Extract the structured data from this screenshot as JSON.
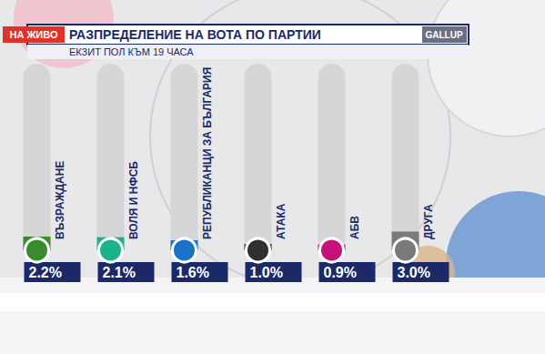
{
  "chart_data": {
    "type": "bar",
    "title": "РАЗПРЕДЕЛЕНИЕ НА ВОТА ПО ПАРТИИ",
    "subtitle": "ЕКЗИТ ПОЛ КЪМ 19 ЧАСА",
    "annotations": [
      "НА ЖИВО",
      "GALLUP"
    ],
    "categories": [
      "ВЪЗРАЖДАНЕ",
      "ВОЛЯ И НФСБ",
      "РЕПУБЛИКАНЦИ ЗА БЪЛГАРИЯ",
      "АТАКА",
      "АБВ",
      "ДРУГА"
    ],
    "values": [
      2.2,
      2.1,
      1.6,
      1.0,
      0.9,
      3.0
    ],
    "value_labels": [
      "2.2%",
      "2.1%",
      "1.6%",
      "1.0%",
      "0.9%",
      "3.0%"
    ],
    "colors": [
      "#3a8a2e",
      "#1bb38a",
      "#1a73c9",
      "#2e312e",
      "#c4127a",
      "#7a7a7a"
    ],
    "ylim": [
      0,
      30
    ],
    "data_labels": true,
    "tick_labels": false,
    "grid": false
  }
}
